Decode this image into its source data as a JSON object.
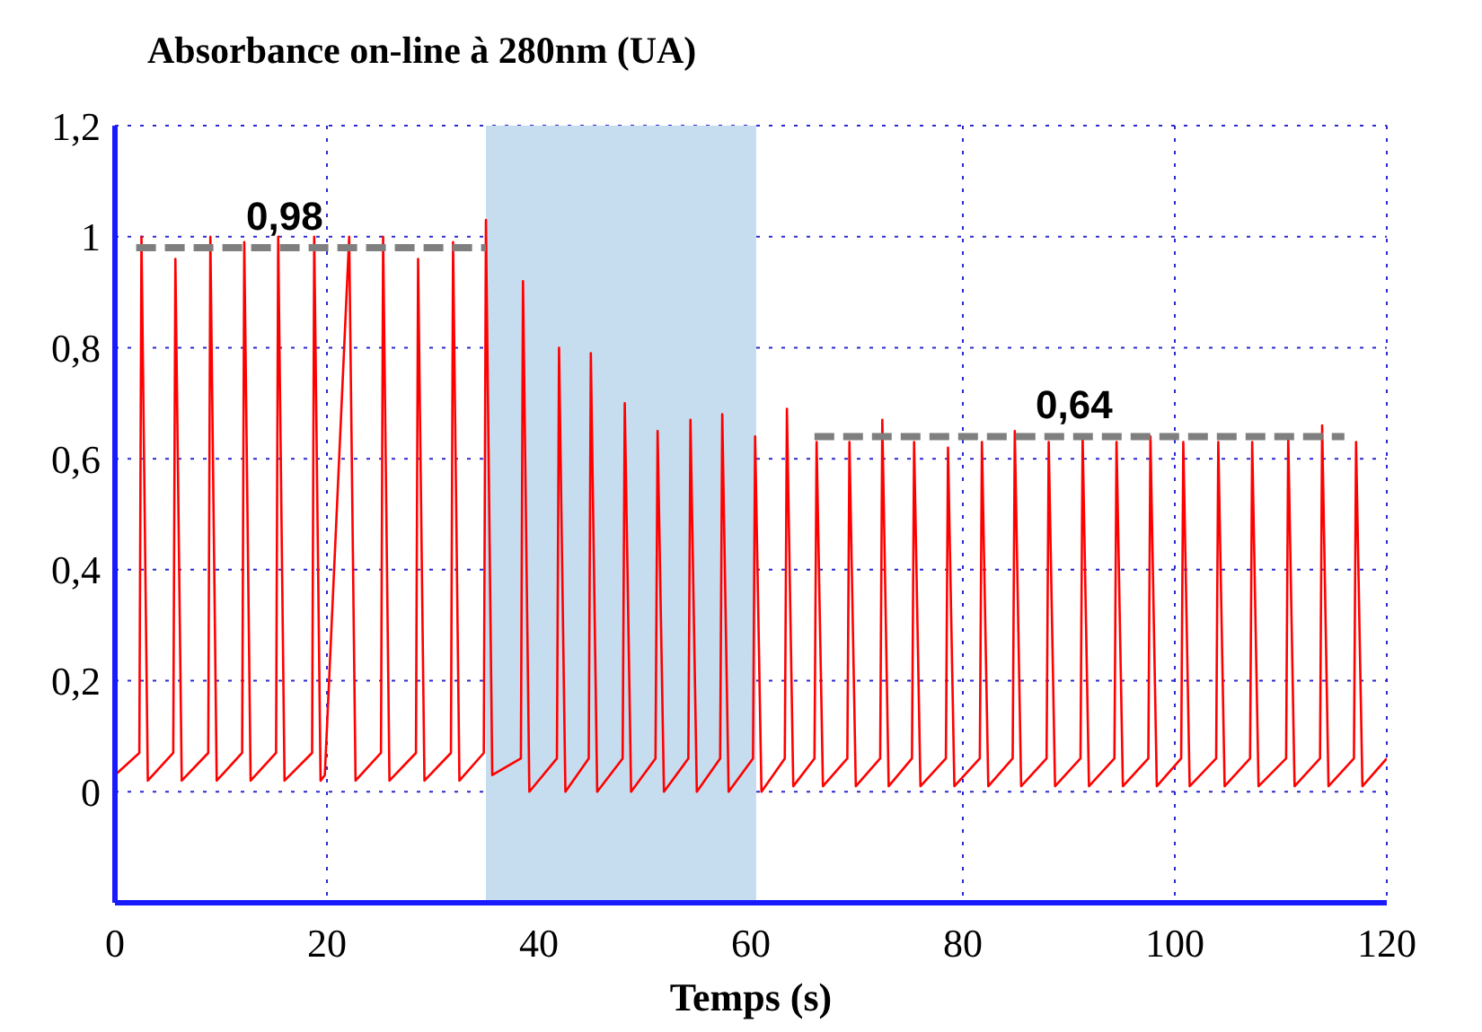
{
  "chart_data": {
    "type": "line",
    "ylabel": "Absorbance on-line à 280nm (UA)",
    "xlabel": "Temps (s)",
    "xlim": [
      0,
      120
    ],
    "xticks": [
      0,
      20,
      40,
      60,
      80,
      100,
      120
    ],
    "ylim": [
      -0.2,
      1.2
    ],
    "yticks": [
      {
        "value": 0,
        "label": "0"
      },
      {
        "value": 0.2,
        "label": "0,2"
      },
      {
        "value": 0.4,
        "label": "0,4"
      },
      {
        "value": 0.6,
        "label": "0,6"
      },
      {
        "value": 0.8,
        "label": "0,8"
      },
      {
        "value": 1,
        "label": "1"
      },
      {
        "value": 1.2,
        "label": "1,2"
      }
    ],
    "grid": true,
    "marker": "none",
    "bands": [
      {
        "axis": "x",
        "from": 35,
        "to": 60.5,
        "color": "#c6ddef"
      }
    ],
    "annotations": [
      {
        "text": "0,98",
        "x": 16,
        "y": 0.98
      },
      {
        "text": "0,64",
        "x": 90.5,
        "y": 0.64
      }
    ],
    "series": [
      {
        "color": "#ff0000",
        "line_style": "solid",
        "x": [
          0,
          2.3,
          2.5,
          3.1,
          5.5,
          5.7,
          6.3,
          8.8,
          9.0,
          9.6,
          12.0,
          12.2,
          12.8,
          15.2,
          15.4,
          16.0,
          18.6,
          18.8,
          19.4,
          19.8,
          22.1,
          22.7,
          25.1,
          25.3,
          25.9,
          28.4,
          28.6,
          29.2,
          31.7,
          31.9,
          32.5,
          34.8,
          35.0,
          35.6,
          38.3,
          38.5,
          39.1,
          41.7,
          41.9,
          42.5,
          44.7,
          44.9,
          45.5,
          47.9,
          48.1,
          48.7,
          51.0,
          51.2,
          51.8,
          54.1,
          54.3,
          54.9,
          57.1,
          57.3,
          57.9,
          60.2,
          60.4,
          61.0,
          63.2,
          63.4,
          64.0,
          66.0,
          66.2,
          66.8,
          69.1,
          69.3,
          69.9,
          72.2,
          72.4,
          73.0,
          75.2,
          75.4,
          76.0,
          78.4,
          78.6,
          79.2,
          81.6,
          81.8,
          82.4,
          84.7,
          84.9,
          85.5,
          87.9,
          88.1,
          88.7,
          91.1,
          91.3,
          91.9,
          94.3,
          94.5,
          95.1,
          97.5,
          97.7,
          98.3,
          100.6,
          100.8,
          101.4,
          103.9,
          104.1,
          104.7,
          107.1,
          107.3,
          107.9,
          110.5,
          110.7,
          111.3,
          113.7,
          113.9,
          114.5,
          116.9,
          117.1,
          117.7,
          120
        ],
        "values": [
          0.03,
          0.07,
          1.0,
          0.02,
          0.07,
          0.96,
          0.02,
          0.07,
          1.0,
          0.02,
          0.07,
          0.99,
          0.02,
          0.07,
          1.0,
          0.02,
          0.07,
          1.0,
          0.02,
          0.03,
          1.0,
          0.02,
          0.07,
          1.0,
          0.02,
          0.07,
          0.96,
          0.02,
          0.07,
          0.99,
          0.02,
          0.07,
          1.03,
          0.03,
          0.06,
          0.92,
          0.0,
          0.06,
          0.8,
          0.0,
          0.06,
          0.79,
          0.0,
          0.06,
          0.7,
          0.0,
          0.06,
          0.65,
          0.0,
          0.06,
          0.67,
          0.0,
          0.06,
          0.68,
          0.0,
          0.06,
          0.64,
          0.0,
          0.06,
          0.69,
          0.01,
          0.06,
          0.63,
          0.01,
          0.06,
          0.63,
          0.01,
          0.06,
          0.67,
          0.01,
          0.06,
          0.63,
          0.01,
          0.06,
          0.62,
          0.01,
          0.06,
          0.63,
          0.01,
          0.06,
          0.65,
          0.01,
          0.06,
          0.63,
          0.01,
          0.06,
          0.64,
          0.01,
          0.06,
          0.63,
          0.01,
          0.06,
          0.64,
          0.01,
          0.06,
          0.63,
          0.01,
          0.06,
          0.63,
          0.01,
          0.06,
          0.63,
          0.01,
          0.06,
          0.64,
          0.01,
          0.06,
          0.66,
          0.01,
          0.06,
          0.63,
          0.01,
          0.06
        ]
      },
      {
        "color": "#7f7f7f",
        "line_style": "dashed",
        "x": [
          2,
          35
        ],
        "values": [
          0.98,
          0.98
        ]
      },
      {
        "color": "#7f7f7f",
        "line_style": "dashed",
        "x": [
          66,
          116
        ],
        "values": [
          0.64,
          0.64
        ]
      }
    ]
  }
}
